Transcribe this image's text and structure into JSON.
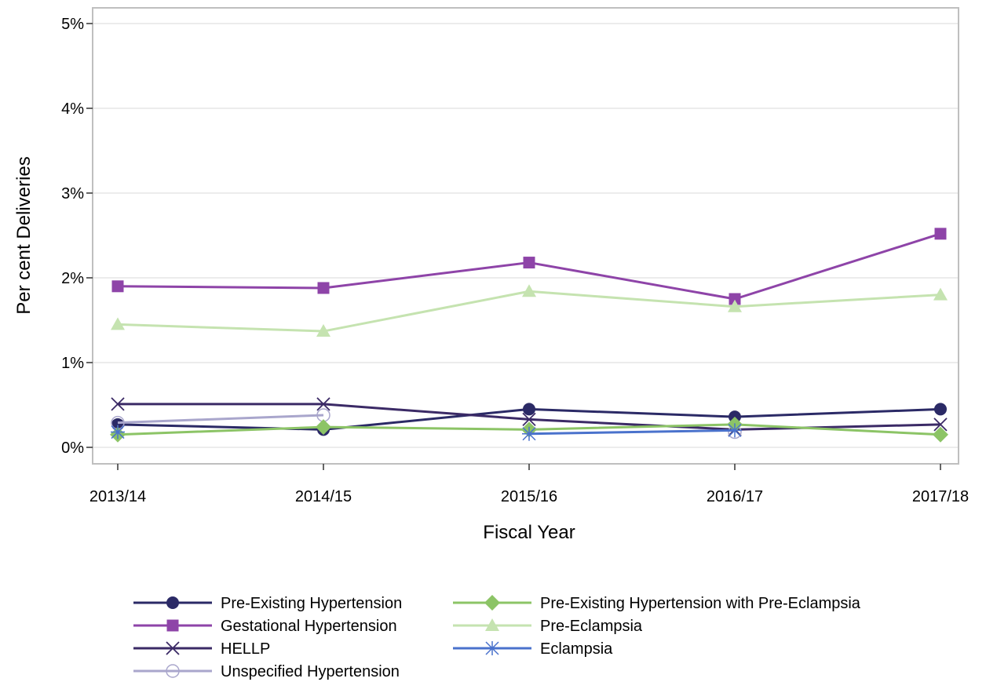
{
  "chart_data": {
    "type": "line",
    "title": "",
    "xlabel": "Fiscal Year",
    "ylabel": "Per cent Deliveries",
    "categories": [
      "2013/14",
      "2014/15",
      "2015/16",
      "2016/17",
      "2017/18"
    ],
    "ylim": [
      0,
      5
    ],
    "yticks": [
      0,
      1,
      2,
      3,
      4,
      5
    ],
    "ytick_labels": [
      "0%",
      "1%",
      "2%",
      "3%",
      "4%",
      "5%"
    ],
    "grid": true,
    "legend_position": "bottom",
    "series": [
      {
        "name": "Pre-Existing Hypertension",
        "color": "#2b2a66",
        "marker": "circle",
        "values": [
          0.27,
          0.21,
          0.45,
          0.36,
          0.45
        ]
      },
      {
        "name": "Gestational Hypertension",
        "color": "#8e44a8",
        "marker": "square",
        "values": [
          1.9,
          1.88,
          2.18,
          1.75,
          2.52
        ]
      },
      {
        "name": "HELLP",
        "color": "#3b2a66",
        "marker": "x",
        "values": [
          0.51,
          0.51,
          0.33,
          0.21,
          0.27
        ]
      },
      {
        "name": "Unspecified Hypertension",
        "color": "#a9a6cc",
        "marker": "open-circle",
        "values": [
          0.29,
          0.38,
          null,
          0.18,
          null
        ]
      },
      {
        "name": "Pre-Existing Hypertension with Pre-Eclampsia",
        "color": "#8cc466",
        "marker": "diamond",
        "values": [
          0.15,
          0.24,
          0.21,
          0.27,
          0.15
        ]
      },
      {
        "name": "Pre-Eclampsia",
        "color": "#c5e3b0",
        "marker": "triangle",
        "values": [
          1.45,
          1.37,
          1.84,
          1.66,
          1.8
        ]
      },
      {
        "name": "Eclampsia",
        "color": "#4a72cc",
        "marker": "star",
        "values": [
          0.18,
          null,
          0.16,
          0.2,
          null
        ]
      }
    ]
  }
}
